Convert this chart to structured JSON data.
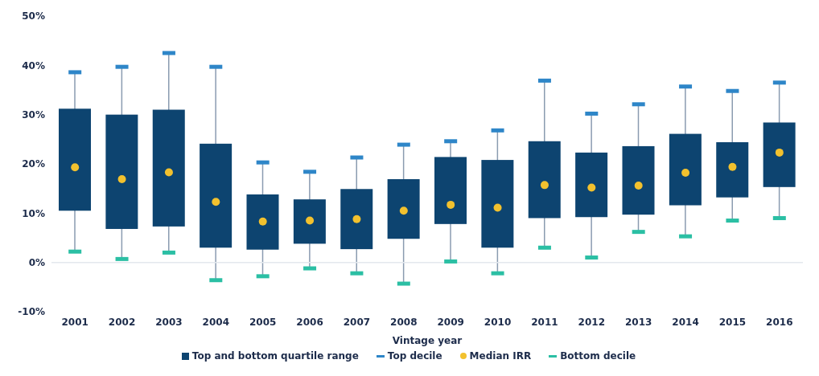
{
  "chart_data": {
    "type": "box",
    "xlabel": "Vintage year",
    "categories": [
      "2001",
      "2002",
      "2003",
      "2004",
      "2005",
      "2006",
      "2007",
      "2008",
      "2009",
      "2010",
      "2011",
      "2012",
      "2013",
      "2014",
      "2015",
      "2016"
    ],
    "ylim": [
      -10,
      50
    ],
    "yticks": [
      {
        "value": -10,
        "label": "-10%"
      },
      {
        "value": 0,
        "label": "0%"
      },
      {
        "value": 10,
        "label": "10%"
      },
      {
        "value": 20,
        "label": "20%"
      },
      {
        "value": 30,
        "label": "30%"
      },
      {
        "value": 40,
        "label": "40%"
      },
      {
        "value": 50,
        "label": "50%"
      }
    ],
    "legend": "bottom",
    "ref_lines": [
      {
        "axis": "y",
        "value": 0,
        "label": null,
        "color": "#e3e8ee"
      }
    ],
    "series": [
      {
        "name": "Top and bottom quartile range",
        "color": "#0d4470",
        "boxes": [
          {
            "low": 2.2,
            "q1": 10.5,
            "q3": 31.2,
            "high": 38.6
          },
          {
            "low": 0.7,
            "q1": 6.8,
            "q3": 30.0,
            "high": 39.7
          },
          {
            "low": 2.0,
            "q1": 7.3,
            "q3": 31.0,
            "high": 42.5
          },
          {
            "low": -3.6,
            "q1": 3.0,
            "q3": 24.1,
            "high": 39.7
          },
          {
            "low": -2.8,
            "q1": 2.6,
            "q3": 13.8,
            "high": 20.3
          },
          {
            "low": -1.2,
            "q1": 3.8,
            "q3": 12.8,
            "high": 18.4
          },
          {
            "low": -2.2,
            "q1": 2.7,
            "q3": 14.9,
            "high": 21.3
          },
          {
            "low": -4.3,
            "q1": 4.8,
            "q3": 16.9,
            "high": 23.9
          },
          {
            "low": 0.2,
            "q1": 7.8,
            "q3": 21.4,
            "high": 24.6
          },
          {
            "low": -2.2,
            "q1": 3.0,
            "q3": 20.8,
            "high": 26.8
          },
          {
            "low": 3.0,
            "q1": 9.0,
            "q3": 24.6,
            "high": 36.9
          },
          {
            "low": 1.0,
            "q1": 9.2,
            "q3": 22.3,
            "high": 30.2
          },
          {
            "low": 6.2,
            "q1": 9.7,
            "q3": 23.6,
            "high": 32.1
          },
          {
            "low": 5.3,
            "q1": 11.6,
            "q3": 26.1,
            "high": 35.7
          },
          {
            "low": 8.5,
            "q1": 13.2,
            "q3": 24.4,
            "high": 34.8
          },
          {
            "low": 9.0,
            "q1": 15.3,
            "q3": 28.4,
            "high": 36.5
          }
        ]
      },
      {
        "name": "Top decile",
        "type": "scatter",
        "color": "#2e86c8",
        "values": [
          38.6,
          39.7,
          42.5,
          39.7,
          20.3,
          18.4,
          21.3,
          23.9,
          24.6,
          26.8,
          36.9,
          30.2,
          32.1,
          35.7,
          34.8,
          36.5
        ]
      },
      {
        "name": "Median IRR",
        "type": "scatter",
        "marker": "circle",
        "color": "#f2c12e",
        "values": [
          19.3,
          16.9,
          18.3,
          12.3,
          8.3,
          8.5,
          8.8,
          10.5,
          11.7,
          11.1,
          15.7,
          15.2,
          15.6,
          18.2,
          19.4,
          22.3
        ]
      },
      {
        "name": "Bottom decile",
        "type": "scatter",
        "color": "#2bbfa4",
        "values": [
          2.2,
          0.7,
          2.0,
          -3.6,
          -2.8,
          -1.2,
          -2.2,
          -4.3,
          0.2,
          -2.2,
          3.0,
          1.0,
          6.2,
          5.3,
          8.5,
          9.0
        ]
      }
    ]
  }
}
